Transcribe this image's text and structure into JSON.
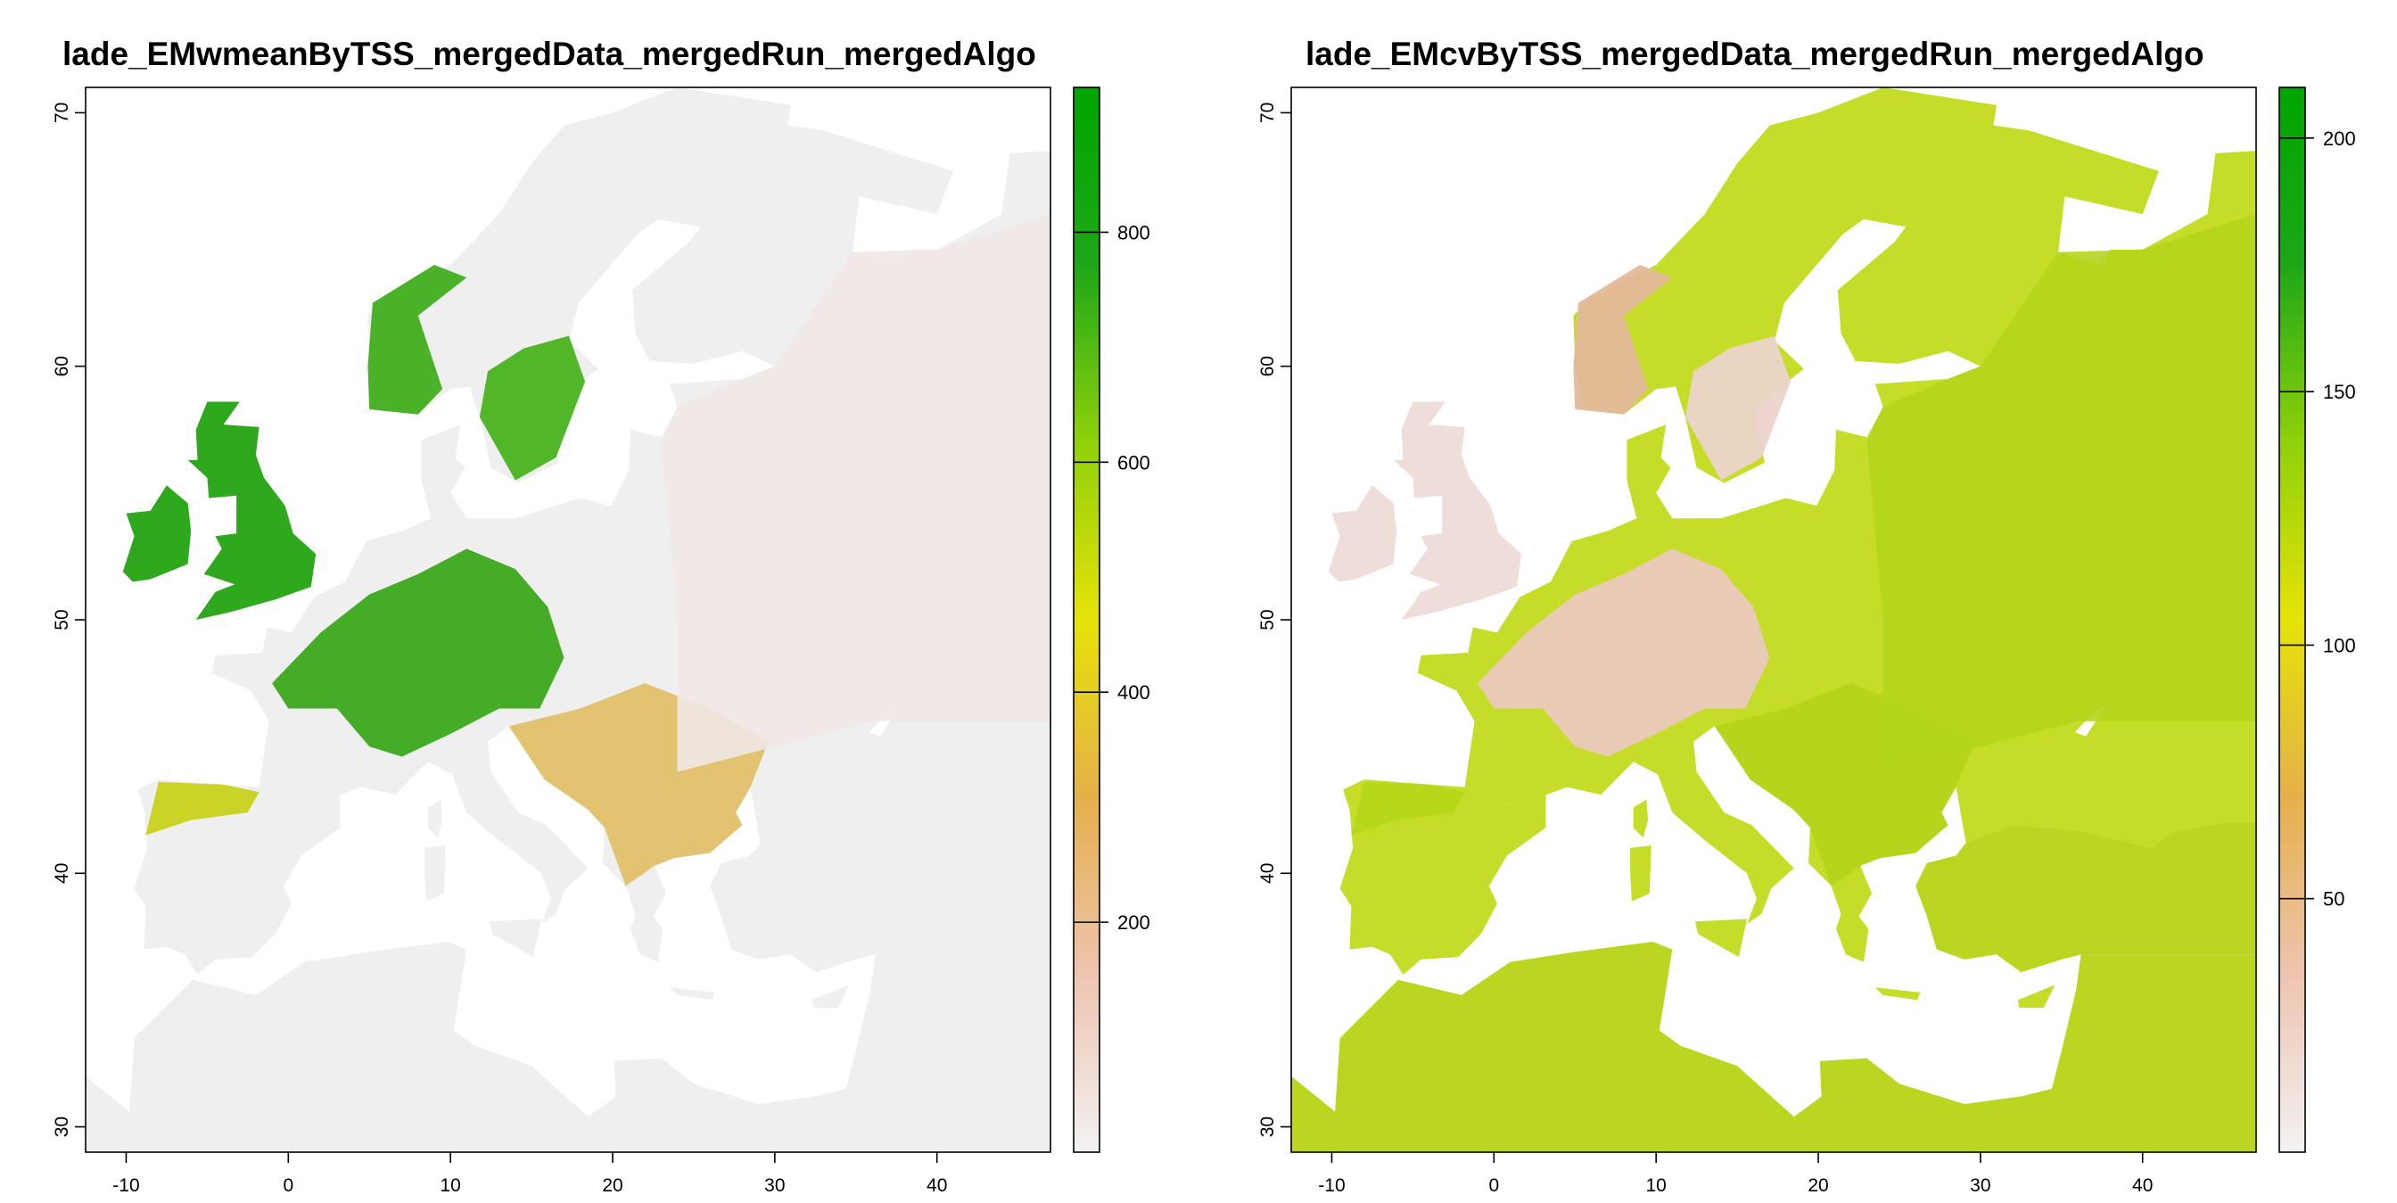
{
  "maps": [
    {
      "title": "lade_EMwmeanByTSS_mergedData_mergedRun_mergedAlgo",
      "variable": "EMwmeanByTSS",
      "x_ticks": [
        "-10",
        "0",
        "10",
        "20",
        "30",
        "40"
      ],
      "y_ticks": [
        "30",
        "40",
        "50",
        "60",
        "70"
      ],
      "legend_ticks": [
        "200",
        "400",
        "600",
        "800"
      ],
      "legend_range": [
        0,
        926
      ],
      "palette": [
        "#f2f2f2",
        "#eec4b0",
        "#e5b04a",
        "#e6e208",
        "#8fd10a",
        "#1da717",
        "#00a600"
      ],
      "land_color": "#efefef",
      "colors": {
        "uk": "#2ea81d",
        "central_europe": "#3aa81a",
        "scandinavia_south": "#48b21c",
        "norway_coast": "#3fae1c",
        "iberia_north": "#c8d21a",
        "balkans": "#e0c06a",
        "east_europe": "#f1e8e6",
        "africa": "#f0efef"
      }
    },
    {
      "title": "lade_EMcvByTSS_mergedData_mergedRun_mergedAlgo",
      "variable": "EMcvByTSS",
      "x_ticks": [
        "-10",
        "0",
        "10",
        "20",
        "30",
        "40"
      ],
      "y_ticks": [
        "30",
        "40",
        "50",
        "60",
        "70"
      ],
      "legend_ticks": [
        "50",
        "100",
        "150",
        "200"
      ],
      "legend_range": [
        0,
        210
      ],
      "palette": [
        "#f2f2f2",
        "#eec4b0",
        "#e5b04a",
        "#e6e208",
        "#8fd10a",
        "#1da717",
        "#00a600"
      ],
      "land_color": "#c5dc28",
      "colors": {
        "uk": "#eeddd8",
        "central_europe": "#ebc9bd",
        "scandinavia_south": "#ecd3ca",
        "norway_coast": "#e3b89a",
        "iberia_north": "#b6d61a",
        "balkans": "#b4d31a",
        "east_europe": "#b2d51c",
        "africa": "#bbd521"
      }
    }
  ]
}
